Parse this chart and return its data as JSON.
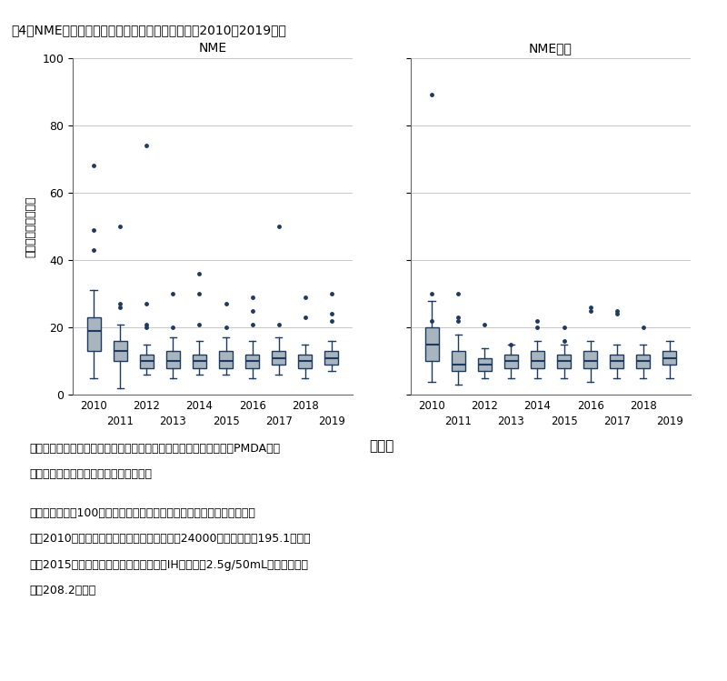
{
  "title_fig": "围4",
  "title_main": "NMEの審査期間（月数）の推移（承認年毎；2010～2019年）",
  "subplot_titles": [
    "NME",
    "NME以外"
  ],
  "ylabel": "申請～承認（月数）",
  "xlabel": "承認年",
  "years": [
    2010,
    2011,
    2012,
    2013,
    2014,
    2015,
    2016,
    2017,
    2018,
    2019
  ],
  "ylim": [
    0,
    100
  ],
  "yticks": [
    0,
    20,
    40,
    60,
    80,
    100
  ],
  "box_facecolor": "#a8b4be",
  "box_edgecolor": "#1e3a5f",
  "whisker_color": "#1e3a5f",
  "flier_color": "#1e3a5f",
  "median_color": "#1e3a5f",
  "grid_color": "#c8c8c8",
  "nme_data": {
    "2010": {
      "q1": 13,
      "median": 19,
      "q3": 23,
      "whislo": 5,
      "whishi": 31,
      "fliers": [
        43,
        49,
        68
      ]
    },
    "2011": {
      "q1": 10,
      "median": 13,
      "q3": 16,
      "whislo": 2,
      "whishi": 21,
      "fliers": [
        26,
        27,
        50
      ]
    },
    "2012": {
      "q1": 8,
      "median": 10,
      "q3": 12,
      "whislo": 6,
      "whishi": 15,
      "fliers": [
        20,
        21,
        27,
        74
      ]
    },
    "2013": {
      "q1": 8,
      "median": 10,
      "q3": 13,
      "whislo": 5,
      "whishi": 17,
      "fliers": [
        20,
        30
      ]
    },
    "2014": {
      "q1": 8,
      "median": 10,
      "q3": 12,
      "whislo": 6,
      "whishi": 16,
      "fliers": [
        21,
        30,
        36
      ]
    },
    "2015": {
      "q1": 8,
      "median": 10,
      "q3": 13,
      "whislo": 6,
      "whishi": 17,
      "fliers": [
        20,
        27
      ]
    },
    "2016": {
      "q1": 8,
      "median": 10,
      "q3": 12,
      "whislo": 5,
      "whishi": 16,
      "fliers": [
        21,
        25,
        29
      ]
    },
    "2017": {
      "q1": 9,
      "median": 11,
      "q3": 13,
      "whislo": 6,
      "whishi": 17,
      "fliers": [
        21,
        50
      ]
    },
    "2018": {
      "q1": 8,
      "median": 10,
      "q3": 12,
      "whislo": 5,
      "whishi": 15,
      "fliers": [
        23,
        29
      ]
    },
    "2019": {
      "q1": 9,
      "median": 11,
      "q3": 13,
      "whislo": 7,
      "whishi": 16,
      "fliers": [
        22,
        24,
        30
      ]
    }
  },
  "nme_other_data": {
    "2010": {
      "q1": 10,
      "median": 15,
      "q3": 20,
      "whislo": 4,
      "whishi": 28,
      "fliers": [
        22,
        30,
        89
      ]
    },
    "2011": {
      "q1": 7,
      "median": 9,
      "q3": 13,
      "whislo": 3,
      "whishi": 18,
      "fliers": [
        22,
        23,
        30
      ]
    },
    "2012": {
      "q1": 7,
      "median": 9,
      "q3": 11,
      "whislo": 5,
      "whishi": 14,
      "fliers": [
        21
      ]
    },
    "2013": {
      "q1": 8,
      "median": 10,
      "q3": 12,
      "whislo": 5,
      "whishi": 15,
      "fliers": [
        15
      ]
    },
    "2014": {
      "q1": 8,
      "median": 10,
      "q3": 13,
      "whislo": 5,
      "whishi": 16,
      "fliers": [
        20,
        22
      ]
    },
    "2015": {
      "q1": 8,
      "median": 10,
      "q3": 12,
      "whislo": 5,
      "whishi": 15,
      "fliers": [
        16,
        20
      ]
    },
    "2016": {
      "q1": 8,
      "median": 10,
      "q3": 13,
      "whislo": 4,
      "whishi": 16,
      "fliers": [
        25,
        26
      ]
    },
    "2017": {
      "q1": 8,
      "median": 10,
      "q3": 12,
      "whislo": 5,
      "whishi": 15,
      "fliers": [
        24,
        25
      ]
    },
    "2018": {
      "q1": 8,
      "median": 10,
      "q3": 12,
      "whislo": 5,
      "whishi": 15,
      "fliers": [
        20
      ]
    },
    "2019": {
      "q1": 9,
      "median": 11,
      "q3": 13,
      "whislo": 5,
      "whishi": 16,
      "fliers": []
    }
  },
  "source_line1": "出所：審査報告書、新医薬品の承認品目一覧、添付文書（いずれもPMDA）を",
  "source_line2": "　　もとに医薬産業政策研究所にて作成",
  "note_line1": "注）審査期間が100ケ月を超える以下２品目は、グラフから除外した。",
  "note_line2": "　　2010年承認の「エポジン皮下注シリンジ24000」（審査期間195.1ケ月）",
  "note_line3": "　　2015年承認の「献血ヴェノグロブリIH５％静注2.5g/50mL」（審査期間",
  "note_line4": "　　208.2ケ月）",
  "background_color": "#ffffff"
}
